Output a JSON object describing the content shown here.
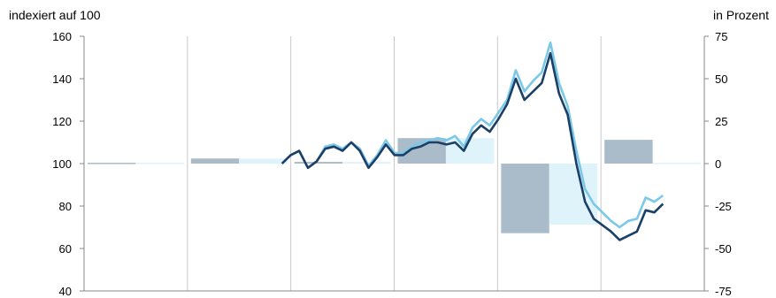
{
  "chart_data": {
    "type": "line",
    "left_axis_title": "indexiert auf 100",
    "right_axis_title": "in Prozent",
    "y_left": {
      "min": 40,
      "max": 160,
      "ticks": [
        "160",
        "140",
        "120",
        "100",
        "80",
        "60",
        "40"
      ]
    },
    "y_right": {
      "min": -75,
      "max": 75,
      "ticks": [
        "75",
        "50",
        "25",
        "0",
        "-25",
        "-50",
        "-75"
      ]
    },
    "x_periods": 6,
    "bars": [
      {
        "period": 0,
        "dark": 0.5,
        "light": 0.5
      },
      {
        "period": 1,
        "dark": 3,
        "light": 3
      },
      {
        "period": 2,
        "dark": 1,
        "light": 1
      },
      {
        "period": 3,
        "dark": 15,
        "light": 15
      },
      {
        "period": 4,
        "dark": -41,
        "light": -36
      },
      {
        "period": 5,
        "dark": 14,
        "light": 0.5
      }
    ],
    "series": [
      {
        "color": "#1b3f66",
        "values": [
          100,
          104,
          106,
          98,
          101,
          107,
          108,
          106,
          110,
          106,
          98,
          103,
          109,
          104,
          104,
          107,
          108,
          110,
          110,
          109,
          110,
          106,
          114,
          118,
          115,
          121,
          128,
          140,
          130,
          134,
          138,
          152,
          133,
          123,
          100,
          82,
          74,
          71,
          68,
          64,
          66,
          68,
          78,
          77,
          81
        ]
      },
      {
        "color": "#7cc8e8",
        "values": [
          100,
          104,
          106,
          98,
          101,
          108,
          109,
          107,
          110,
          107,
          99,
          104,
          111,
          105,
          105,
          108,
          110,
          111,
          112,
          111,
          113,
          108,
          117,
          121,
          118,
          124,
          130,
          144,
          134,
          139,
          143,
          157,
          138,
          127,
          106,
          88,
          81,
          77,
          73,
          70,
          73,
          74,
          84,
          82,
          85
        ]
      }
    ],
    "colors": {
      "bar_dark": "#aabbc9",
      "bar_light": "#dff3fa",
      "grid": "#c9c9c9"
    }
  }
}
